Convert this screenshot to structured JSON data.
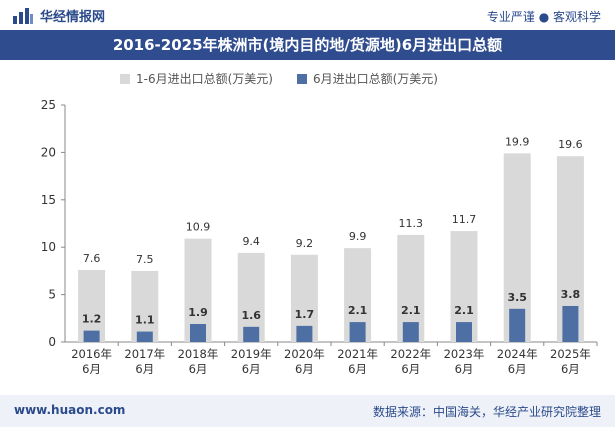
{
  "header": {
    "brand": "华经情报网",
    "slogan": "专业严谨 ● 客观科学"
  },
  "colors": {
    "title_bg": "#2f4c8e",
    "series1": "#d9d9d9",
    "series2": "#4e6fa3"
  },
  "chart_data": {
    "type": "bar",
    "title": "2016-2025年株洲市(境内目的地/货源地)6月进出口总额",
    "categories": [
      "2016年6月",
      "2017年6月",
      "2018年6月",
      "2019年6月",
      "2020年6月",
      "2021年6月",
      "2022年6月",
      "2023年6月",
      "2024年6月",
      "2025年6月"
    ],
    "category_lines": [
      [
        "2016年",
        "6月"
      ],
      [
        "2017年",
        "6月"
      ],
      [
        "2018年",
        "6月"
      ],
      [
        "2019年",
        "6月"
      ],
      [
        "2020年",
        "6月"
      ],
      [
        "2021年",
        "6月"
      ],
      [
        "2022年",
        "6月"
      ],
      [
        "2023年",
        "6月"
      ],
      [
        "2024年",
        "6月"
      ],
      [
        "2025年",
        "6月"
      ]
    ],
    "series": [
      {
        "name": "1-6月进出口总额(万美元)",
        "values": [
          7.6,
          7.5,
          10.9,
          9.4,
          9.2,
          9.9,
          11.3,
          11.7,
          19.9,
          19.6
        ]
      },
      {
        "name": "6月进出口总额(万美元)",
        "values": [
          1.2,
          1.1,
          1.9,
          1.6,
          1.7,
          2.1,
          2.1,
          2.1,
          3.5,
          3.8
        ]
      }
    ],
    "ylim": [
      0,
      25
    ],
    "yticks": [
      0,
      5,
      10,
      15,
      20,
      25
    ],
    "xlabel": "",
    "ylabel": "",
    "legend_position": "top",
    "grid": false
  },
  "footer": {
    "url": "www.huaon.com",
    "source": "数据来源：中国海关，华经产业研究院整理"
  }
}
